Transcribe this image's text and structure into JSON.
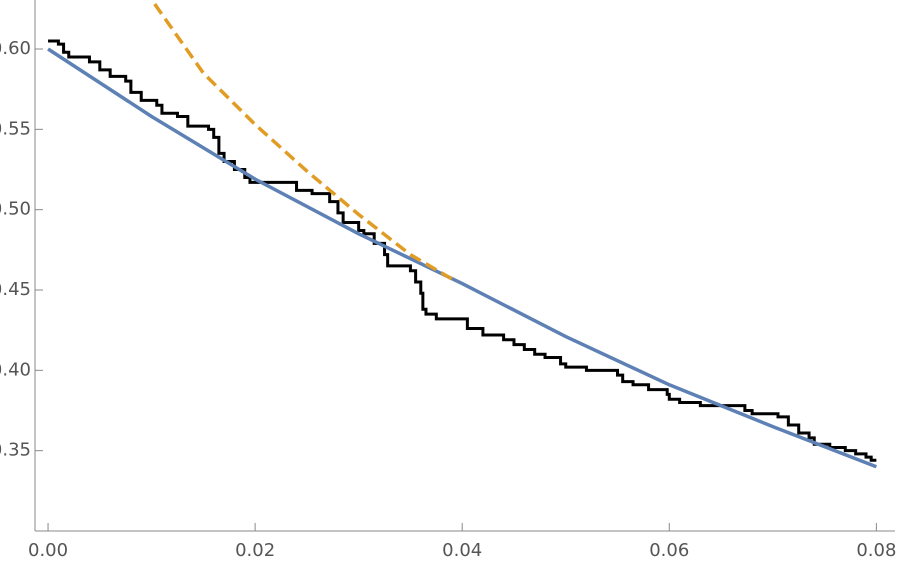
{
  "chart_data": {
    "type": "line",
    "xlim": [
      -0.00126,
      0.0818
    ],
    "ylim": [
      0.3,
      0.6305
    ],
    "xticks": [
      {
        "value": 0,
        "label": "0.00"
      },
      0.02,
      0.04,
      0.06,
      0.08
    ],
    "yticks": [
      0.35,
      {
        "value": 0.4,
        "label": "0.40"
      },
      0.45,
      {
        "value": 0.5,
        "label": "0.50"
      },
      0.55,
      {
        "value": 0.6,
        "label": "0.60"
      }
    ],
    "series": [
      {
        "color": "#000000",
        "step": true,
        "x": [
          0,
          0.001,
          0.0015,
          0.002,
          0.004,
          0.005,
          0.006,
          0.0075,
          0.008,
          0.009,
          0.0105,
          0.011,
          0.0125,
          0.0135,
          0.0155,
          0.016,
          0.0165,
          0.017,
          0.018,
          0.019,
          0.0195,
          0.024,
          0.0255,
          0.0272,
          0.028,
          0.0285,
          0.03,
          0.0305,
          0.0315,
          0.0325,
          0.0328,
          0.035,
          0.0355,
          0.036,
          0.0362,
          0.0365,
          0.0375,
          0.0405,
          0.042,
          0.044,
          0.045,
          0.046,
          0.047,
          0.048,
          0.0495,
          0.05,
          0.052,
          0.055,
          0.0555,
          0.0565,
          0.058,
          0.0598,
          0.06,
          0.061,
          0.063,
          0.0673,
          0.068,
          0.0705,
          0.0715,
          0.0725,
          0.0735,
          0.074,
          0.0755,
          0.077,
          0.078,
          0.079,
          0.0795,
          0.08
        ],
        "values": [
          0.605,
          0.603,
          0.598,
          0.595,
          0.592,
          0.587,
          0.583,
          0.58,
          0.573,
          0.568,
          0.565,
          0.56,
          0.558,
          0.552,
          0.55,
          0.545,
          0.535,
          0.53,
          0.525,
          0.52,
          0.517,
          0.512,
          0.51,
          0.505,
          0.498,
          0.492,
          0.487,
          0.485,
          0.479,
          0.472,
          0.465,
          0.462,
          0.455,
          0.448,
          0.438,
          0.435,
          0.432,
          0.426,
          0.422,
          0.419,
          0.416,
          0.413,
          0.41,
          0.408,
          0.404,
          0.402,
          0.4,
          0.397,
          0.393,
          0.391,
          0.388,
          0.385,
          0.382,
          0.38,
          0.378,
          0.375,
          0.373,
          0.371,
          0.366,
          0.361,
          0.358,
          0.354,
          0.352,
          0.35,
          0.348,
          0.346,
          0.344,
          0.344
        ]
      },
      {
        "color": "#5e81b5",
        "x": [
          0,
          0.01,
          0.02,
          0.03,
          0.04,
          0.05,
          0.06,
          0.07,
          0.08
        ],
        "values": [
          0.6,
          0.558,
          0.519,
          0.485,
          0.454,
          0.421,
          0.391,
          0.365,
          0.34
        ]
      },
      {
        "color": "#e19c24",
        "dashed": true,
        "x": [
          0.0103,
          0.015,
          0.02,
          0.025,
          0.03,
          0.035,
          0.0395
        ],
        "values": [
          0.628,
          0.585,
          0.553,
          0.524,
          0.497,
          0.472,
          0.455
        ]
      }
    ]
  }
}
